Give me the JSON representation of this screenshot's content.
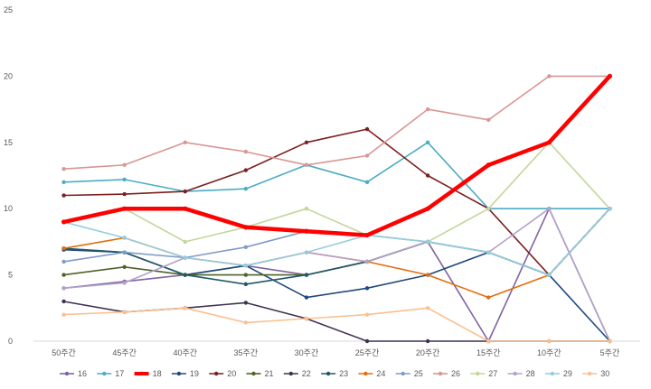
{
  "chart_data": {
    "type": "line",
    "title": "",
    "xlabel": "",
    "ylabel": "",
    "categories": [
      "50주간",
      "45주간",
      "40주간",
      "35주간",
      "30주간",
      "25주간",
      "20주간",
      "15주간",
      "10주간",
      "5주간"
    ],
    "ylim": [
      0,
      25
    ],
    "yticks": [
      0,
      5,
      10,
      15,
      20,
      25
    ],
    "grid": false,
    "legend": "bottom",
    "highlight_series": "18",
    "series": [
      {
        "name": "16",
        "color": "#8064A2",
        "values": [
          4.0,
          4.5,
          5.0,
          5.7,
          5.0,
          6.0,
          7.5,
          0.0,
          10.0,
          0.0
        ]
      },
      {
        "name": "17",
        "color": "#4BACC6",
        "values": [
          12.0,
          12.2,
          11.3,
          11.5,
          13.3,
          12.0,
          15.0,
          10.0,
          10.0,
          10.0
        ]
      },
      {
        "name": "18",
        "color": "#FF0000",
        "values": [
          9.0,
          10.0,
          10.0,
          8.6,
          8.3,
          8.0,
          10.0,
          13.3,
          15.0,
          20.0
        ]
      },
      {
        "name": "19",
        "color": "#1F497D",
        "values": [
          6.9,
          6.7,
          5.0,
          5.7,
          3.3,
          4.0,
          5.0,
          6.7,
          5.0,
          0.0
        ]
      },
      {
        "name": "20",
        "color": "#7B1F1F",
        "values": [
          11.0,
          11.1,
          11.3,
          12.9,
          15.0,
          16.0,
          12.5,
          10.0,
          5.0,
          10.0
        ]
      },
      {
        "name": "21",
        "color": "#4F6228",
        "values": [
          5.0,
          5.6,
          5.0,
          5.0,
          5.0,
          6.0,
          7.5,
          6.7,
          5.0,
          10.0
        ]
      },
      {
        "name": "22",
        "color": "#3F3151",
        "values": [
          3.0,
          2.2,
          2.5,
          2.9,
          1.7,
          0.0,
          0.0,
          0.0,
          0.0,
          0.0
        ]
      },
      {
        "name": "23",
        "color": "#205867",
        "values": [
          7.0,
          6.7,
          5.0,
          4.3,
          5.0,
          6.0,
          7.5,
          6.7,
          5.0,
          10.0
        ]
      },
      {
        "name": "24",
        "color": "#E46C0A",
        "values": [
          7.0,
          7.8,
          6.3,
          5.7,
          6.7,
          6.0,
          5.0,
          3.3,
          5.0,
          10.0
        ]
      },
      {
        "name": "25",
        "color": "#7F9CC8",
        "values": [
          6.0,
          6.7,
          6.3,
          7.1,
          8.3,
          8.0,
          7.5,
          6.7,
          5.0,
          10.0
        ]
      },
      {
        "name": "26",
        "color": "#D99694",
        "values": [
          13.0,
          13.3,
          15.0,
          14.3,
          13.3,
          14.0,
          17.5,
          16.7,
          20.0,
          20.0
        ]
      },
      {
        "name": "27",
        "color": "#C3D69B",
        "values": [
          9.0,
          10.0,
          7.5,
          8.6,
          10.0,
          8.0,
          7.5,
          10.0,
          15.0,
          10.0
        ]
      },
      {
        "name": "28",
        "color": "#B3A2C7",
        "values": [
          4.0,
          4.4,
          6.3,
          5.7,
          6.7,
          6.0,
          7.5,
          6.7,
          10.0,
          0.0
        ]
      },
      {
        "name": "29",
        "color": "#93CDDD",
        "values": [
          9.0,
          7.8,
          6.3,
          5.7,
          6.7,
          8.0,
          7.5,
          6.7,
          5.0,
          10.0
        ]
      },
      {
        "name": "30",
        "color": "#FAC090",
        "values": [
          2.0,
          2.2,
          2.5,
          1.4,
          1.7,
          2.0,
          2.5,
          0.0,
          0.0,
          0.0
        ]
      }
    ]
  }
}
